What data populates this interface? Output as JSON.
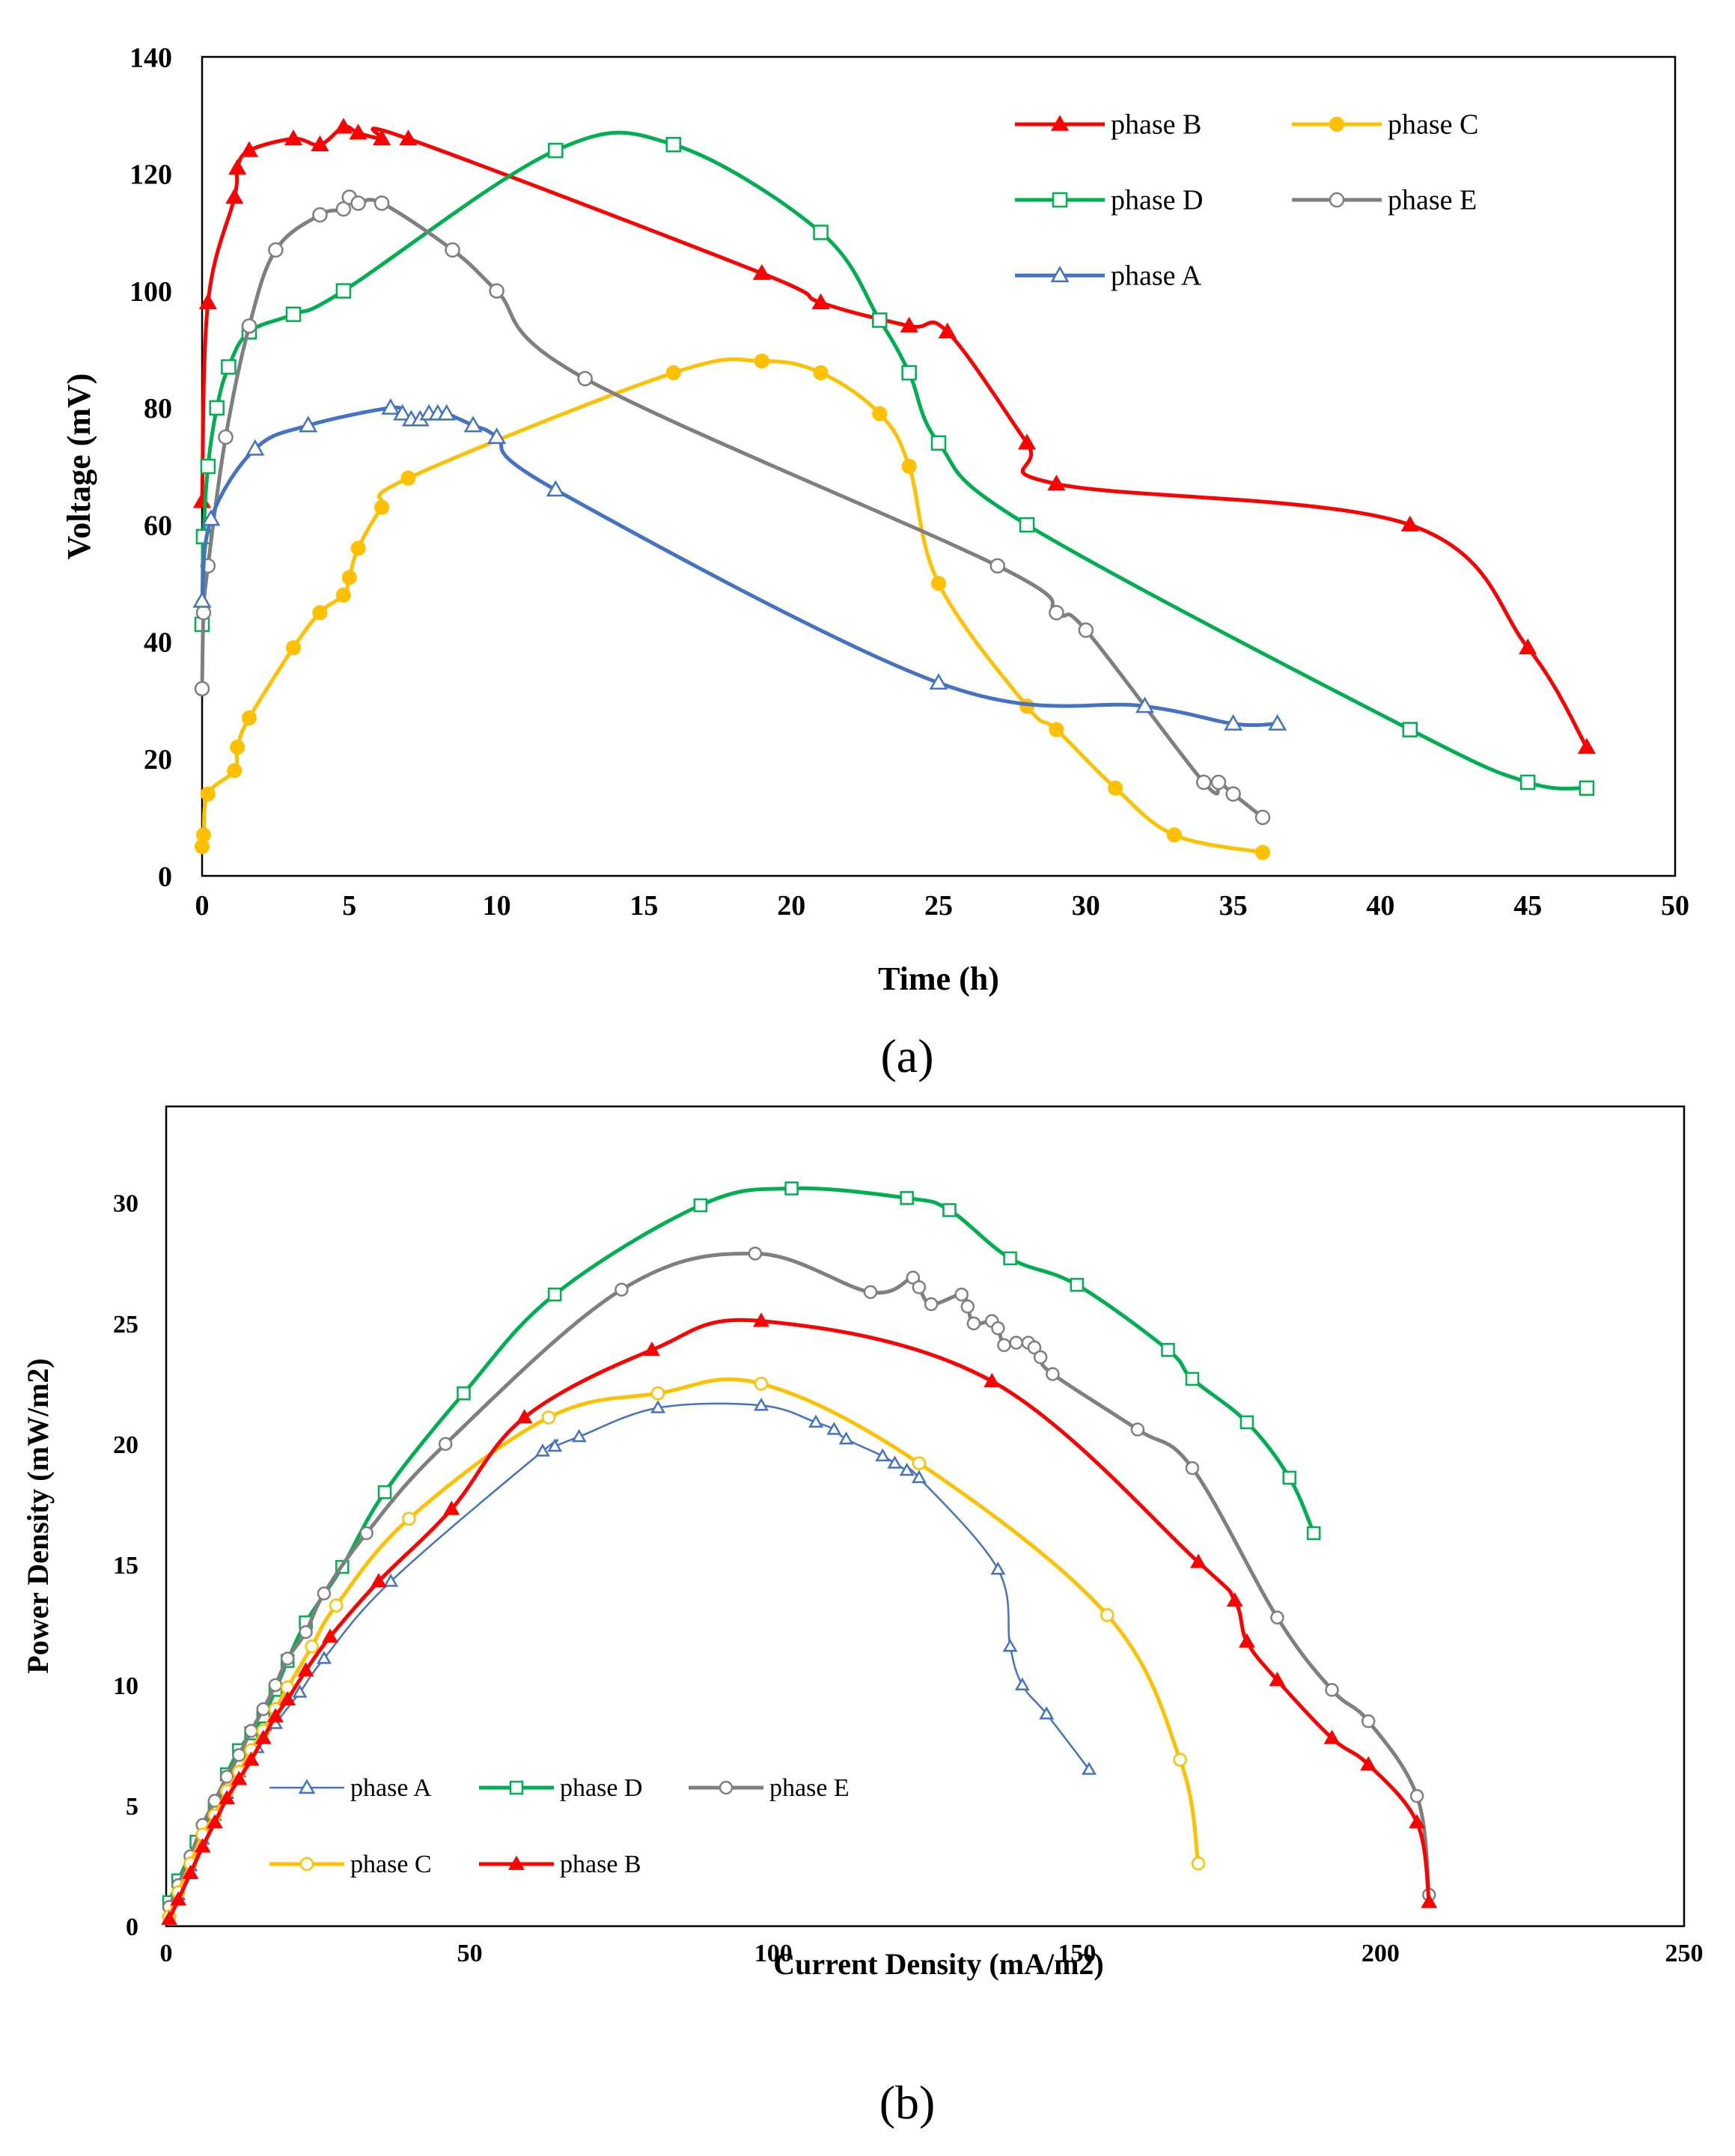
{
  "colors": {
    "phase A": "#4472C4",
    "phase B": "#FF0000",
    "phase C": "#FFC000",
    "phase D": "#00B050",
    "phase E": "#7F7F7F",
    "axis": "#000000"
  },
  "panels": {
    "a": "(a)",
    "b": "(b)"
  },
  "chart_data": [
    {
      "id": "a",
      "type": "line",
      "title": "",
      "xlabel": "Time (h)",
      "ylabel": "Voltage (mV)",
      "xlim": [
        0,
        50
      ],
      "ylim": [
        0,
        140
      ],
      "xticks": [
        0,
        5,
        10,
        15,
        20,
        25,
        30,
        35,
        40,
        45,
        50
      ],
      "yticks": [
        0,
        20,
        40,
        60,
        80,
        100,
        120,
        140
      ],
      "grid": false,
      "legend": "top-right",
      "legend_order": [
        "phase B",
        "phase C",
        "phase D",
        "phase E",
        "phase A"
      ],
      "series": [
        {
          "name": "phase B",
          "marker": "triangle",
          "filled": true,
          "x": [
            0,
            0.2,
            1.1,
            1.2,
            1.6,
            3.1,
            4.0,
            4.8,
            5.3,
            6.1,
            7.0,
            19.0,
            21.0,
            24.0,
            25.3,
            28.0,
            29.0,
            41.0,
            45.0,
            47.0
          ],
          "y": [
            64,
            98,
            116,
            121,
            124,
            126,
            125,
            128,
            127,
            126,
            126,
            103,
            98,
            94,
            93,
            74,
            67,
            60,
            39,
            22
          ]
        },
        {
          "name": "phase C",
          "marker": "circle",
          "filled": true,
          "x": [
            0,
            0.05,
            0.2,
            1.1,
            1.2,
            1.6,
            3.1,
            4.0,
            4.8,
            5.0,
            5.3,
            6.1,
            7.0,
            16.0,
            19.0,
            21.0,
            23.0,
            24.0,
            25.0,
            28.0,
            29.0,
            31.0,
            33.0,
            36.0
          ],
          "y": [
            5,
            7,
            14,
            18,
            22,
            27,
            39,
            45,
            48,
            51,
            56,
            63,
            68,
            86,
            88,
            86,
            79,
            70,
            50,
            29,
            25,
            15,
            7,
            4
          ]
        },
        {
          "name": "phase D",
          "marker": "square",
          "filled": false,
          "x": [
            0,
            0.05,
            0.2,
            0.5,
            0.9,
            1.6,
            3.1,
            4.8,
            12.0,
            16.0,
            21.0,
            23.0,
            24.0,
            25.0,
            28.0,
            41.0,
            45.0,
            47.0
          ],
          "y": [
            43,
            58,
            70,
            80,
            87,
            93,
            96,
            100,
            124,
            125,
            110,
            95,
            86,
            74,
            60,
            25,
            16,
            15
          ]
        },
        {
          "name": "phase E",
          "marker": "circle",
          "filled": false,
          "x": [
            0,
            0.05,
            0.2,
            0.8,
            1.6,
            2.5,
            4.0,
            4.8,
            5.0,
            5.3,
            6.1,
            8.5,
            10.0,
            13.0,
            27.0,
            29.0,
            30.0,
            34.0,
            34.5,
            35.0,
            36.0
          ],
          "y": [
            32,
            45,
            53,
            75,
            94,
            107,
            113,
            114,
            116,
            115,
            115,
            107,
            100,
            85,
            53,
            45,
            42,
            16,
            16,
            14,
            10
          ]
        },
        {
          "name": "phase A",
          "marker": "triangle",
          "filled": false,
          "x": [
            0,
            0.3,
            1.8,
            3.6,
            6.4,
            6.8,
            7.1,
            7.4,
            7.7,
            8.0,
            8.3,
            9.2,
            10.0,
            12.0,
            25.0,
            32.0,
            35.0,
            36.5
          ],
          "y": [
            47,
            61,
            73,
            77,
            80,
            79,
            78,
            78,
            79,
            79,
            79,
            77,
            75,
            66,
            33,
            29,
            26,
            26
          ]
        }
      ]
    },
    {
      "id": "b",
      "type": "line",
      "title": "",
      "xlabel": "Current Density (mA/m2)",
      "ylabel": "Power Density (mW/m2)",
      "xlim": [
        0,
        250
      ],
      "ylim": [
        0,
        34
      ],
      "xticks": [
        0,
        50,
        100,
        150,
        200,
        250
      ],
      "yticks": [
        0,
        5,
        10,
        15,
        20,
        25,
        30
      ],
      "grid": false,
      "legend": "bottom-left",
      "legend_order": [
        "phase A",
        "phase D",
        "phase E",
        "phase C",
        "phase B"
      ],
      "series": [
        {
          "name": "phase A",
          "marker": "triangle",
          "filled": false,
          "x": [
            0.5,
            2,
            4,
            6,
            8,
            10,
            12,
            15,
            18,
            22,
            26,
            37,
            62,
            64,
            68,
            81,
            98,
            107,
            110,
            112,
            118,
            120,
            122,
            124,
            137,
            139,
            141,
            145,
            152
          ],
          "y": [
            0.6,
            1.3,
            2.5,
            3.6,
            4.6,
            5.5,
            6.4,
            7.4,
            8.4,
            9.7,
            11.1,
            14.3,
            19.7,
            19.9,
            20.3,
            21.5,
            21.6,
            20.9,
            20.6,
            20.2,
            19.5,
            19.2,
            18.9,
            18.6,
            14.8,
            11.6,
            10.0,
            8.8,
            6.5
          ]
        },
        {
          "name": "phase D",
          "marker": "square",
          "filled": false,
          "x": [
            0.5,
            2,
            5,
            8,
            10,
            12,
            14,
            16,
            18,
            20,
            23,
            29,
            36,
            49,
            64,
            88,
            103,
            122,
            129,
            139,
            150,
            165,
            169,
            178,
            185,
            189
          ],
          "y": [
            1.0,
            1.9,
            3.5,
            4.9,
            6.3,
            7.3,
            8.0,
            8.7,
            9.8,
            11.0,
            12.6,
            14.9,
            18.0,
            22.1,
            26.2,
            29.9,
            30.6,
            30.2,
            29.7,
            27.7,
            26.6,
            23.9,
            22.7,
            20.9,
            18.6,
            16.3
          ]
        },
        {
          "name": "phase E",
          "marker": "circle",
          "filled": false,
          "x": [
            0.5,
            2,
            4,
            6,
            8,
            10,
            12,
            14,
            16,
            18,
            20,
            23,
            26,
            33,
            46,
            75,
            97,
            116,
            123,
            124,
            126,
            131,
            132,
            133,
            136,
            137,
            138,
            140,
            142,
            143,
            144,
            146,
            160,
            169,
            183,
            192,
            198,
            206,
            208
          ],
          "y": [
            0.8,
            1.7,
            2.9,
            4.2,
            5.2,
            6.2,
            7.1,
            8.1,
            9.0,
            10.0,
            11.1,
            12.2,
            13.8,
            16.3,
            20.0,
            26.4,
            27.9,
            26.3,
            26.9,
            26.5,
            25.8,
            26.2,
            25.7,
            25.0,
            25.1,
            24.8,
            24.1,
            24.2,
            24.2,
            24.0,
            23.6,
            22.9,
            20.6,
            19.0,
            12.8,
            9.8,
            8.5,
            5.4,
            1.3
          ]
        },
        {
          "name": "phase C",
          "marker": "circle",
          "filled": false,
          "x": [
            0.5,
            2,
            4,
            6,
            8,
            10,
            12,
            14,
            16,
            18,
            20,
            24,
            28,
            40,
            63,
            81,
            98,
            124,
            155,
            167,
            170
          ],
          "y": [
            0.4,
            1.4,
            2.6,
            3.8,
            4.6,
            5.6,
            6.4,
            7.3,
            8.1,
            9.0,
            9.9,
            11.6,
            13.3,
            16.9,
            21.1,
            22.1,
            22.5,
            19.2,
            12.9,
            6.9,
            2.6
          ]
        },
        {
          "name": "phase B",
          "marker": "triangle",
          "filled": true,
          "x": [
            0.5,
            2,
            4,
            6,
            8,
            10,
            12,
            14,
            16,
            18,
            20,
            23,
            27,
            35,
            47,
            59,
            80,
            98,
            136,
            170,
            176,
            178,
            183,
            192,
            198,
            206,
            208
          ],
          "y": [
            0.3,
            1.1,
            2.2,
            3.3,
            4.3,
            5.3,
            6.1,
            6.9,
            7.8,
            8.7,
            9.4,
            10.6,
            12.0,
            14.3,
            17.3,
            21.1,
            23.9,
            25.1,
            22.6,
            15.1,
            13.5,
            11.8,
            10.2,
            7.8,
            6.7,
            4.3,
            1.0
          ]
        }
      ]
    }
  ]
}
